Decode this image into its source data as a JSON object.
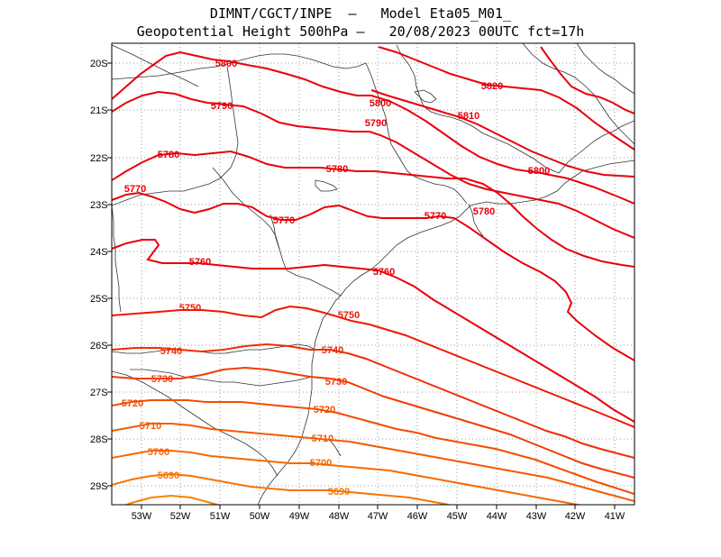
{
  "header": {
    "line1": "DIMNT/CGCT/INPE  –   Model Eta05_M01_",
    "line2": "Geopotential Height 500hPa –   20/08/2023 00UTC fct=17h"
  },
  "map": {
    "lat_ticks": [
      "20S",
      "21S",
      "22S",
      "23S",
      "24S",
      "25S",
      "26S",
      "27S",
      "28S",
      "29S"
    ],
    "lon_ticks": [
      "53W",
      "52W",
      "51W",
      "50W",
      "49W",
      "48W",
      "47W",
      "46W",
      "45W",
      "44W",
      "43W",
      "42W",
      "41W"
    ],
    "contour_labels": [
      {
        "text": "5820",
        "color": "#e8000b"
      },
      {
        "text": "5810",
        "color": "#e8000b"
      },
      {
        "text": "5800",
        "color": "#e8000b"
      },
      {
        "text": "5800",
        "color": "#e8000b"
      },
      {
        "text": "5800",
        "color": "#e8000b"
      },
      {
        "text": "5790",
        "color": "#e8000b"
      },
      {
        "text": "5790",
        "color": "#e8000b"
      },
      {
        "text": "5780",
        "color": "#e8000b"
      },
      {
        "text": "5780",
        "color": "#e8000b"
      },
      {
        "text": "5780",
        "color": "#e8000b"
      },
      {
        "text": "5770",
        "color": "#e8000b"
      },
      {
        "text": "5770",
        "color": "#e8000b"
      },
      {
        "text": "5770",
        "color": "#e8000b"
      },
      {
        "text": "5760",
        "color": "#e8000b"
      },
      {
        "text": "5760",
        "color": "#e8000b"
      },
      {
        "text": "5750",
        "color": "#f01800"
      },
      {
        "text": "5750",
        "color": "#f01800"
      },
      {
        "text": "5740",
        "color": "#f02c00"
      },
      {
        "text": "5740",
        "color": "#f02c00"
      },
      {
        "text": "5730",
        "color": "#f23c00"
      },
      {
        "text": "5730",
        "color": "#f23c00"
      },
      {
        "text": "5720",
        "color": "#f44c00"
      },
      {
        "text": "5720",
        "color": "#f44c00"
      },
      {
        "text": "5710",
        "color": "#f55a00"
      },
      {
        "text": "5710",
        "color": "#f55a00"
      },
      {
        "text": "5700",
        "color": "#f76800"
      },
      {
        "text": "5700",
        "color": "#f76800"
      },
      {
        "text": "5690",
        "color": "#f87400"
      },
      {
        "text": "5690",
        "color": "#f87400"
      }
    ]
  }
}
